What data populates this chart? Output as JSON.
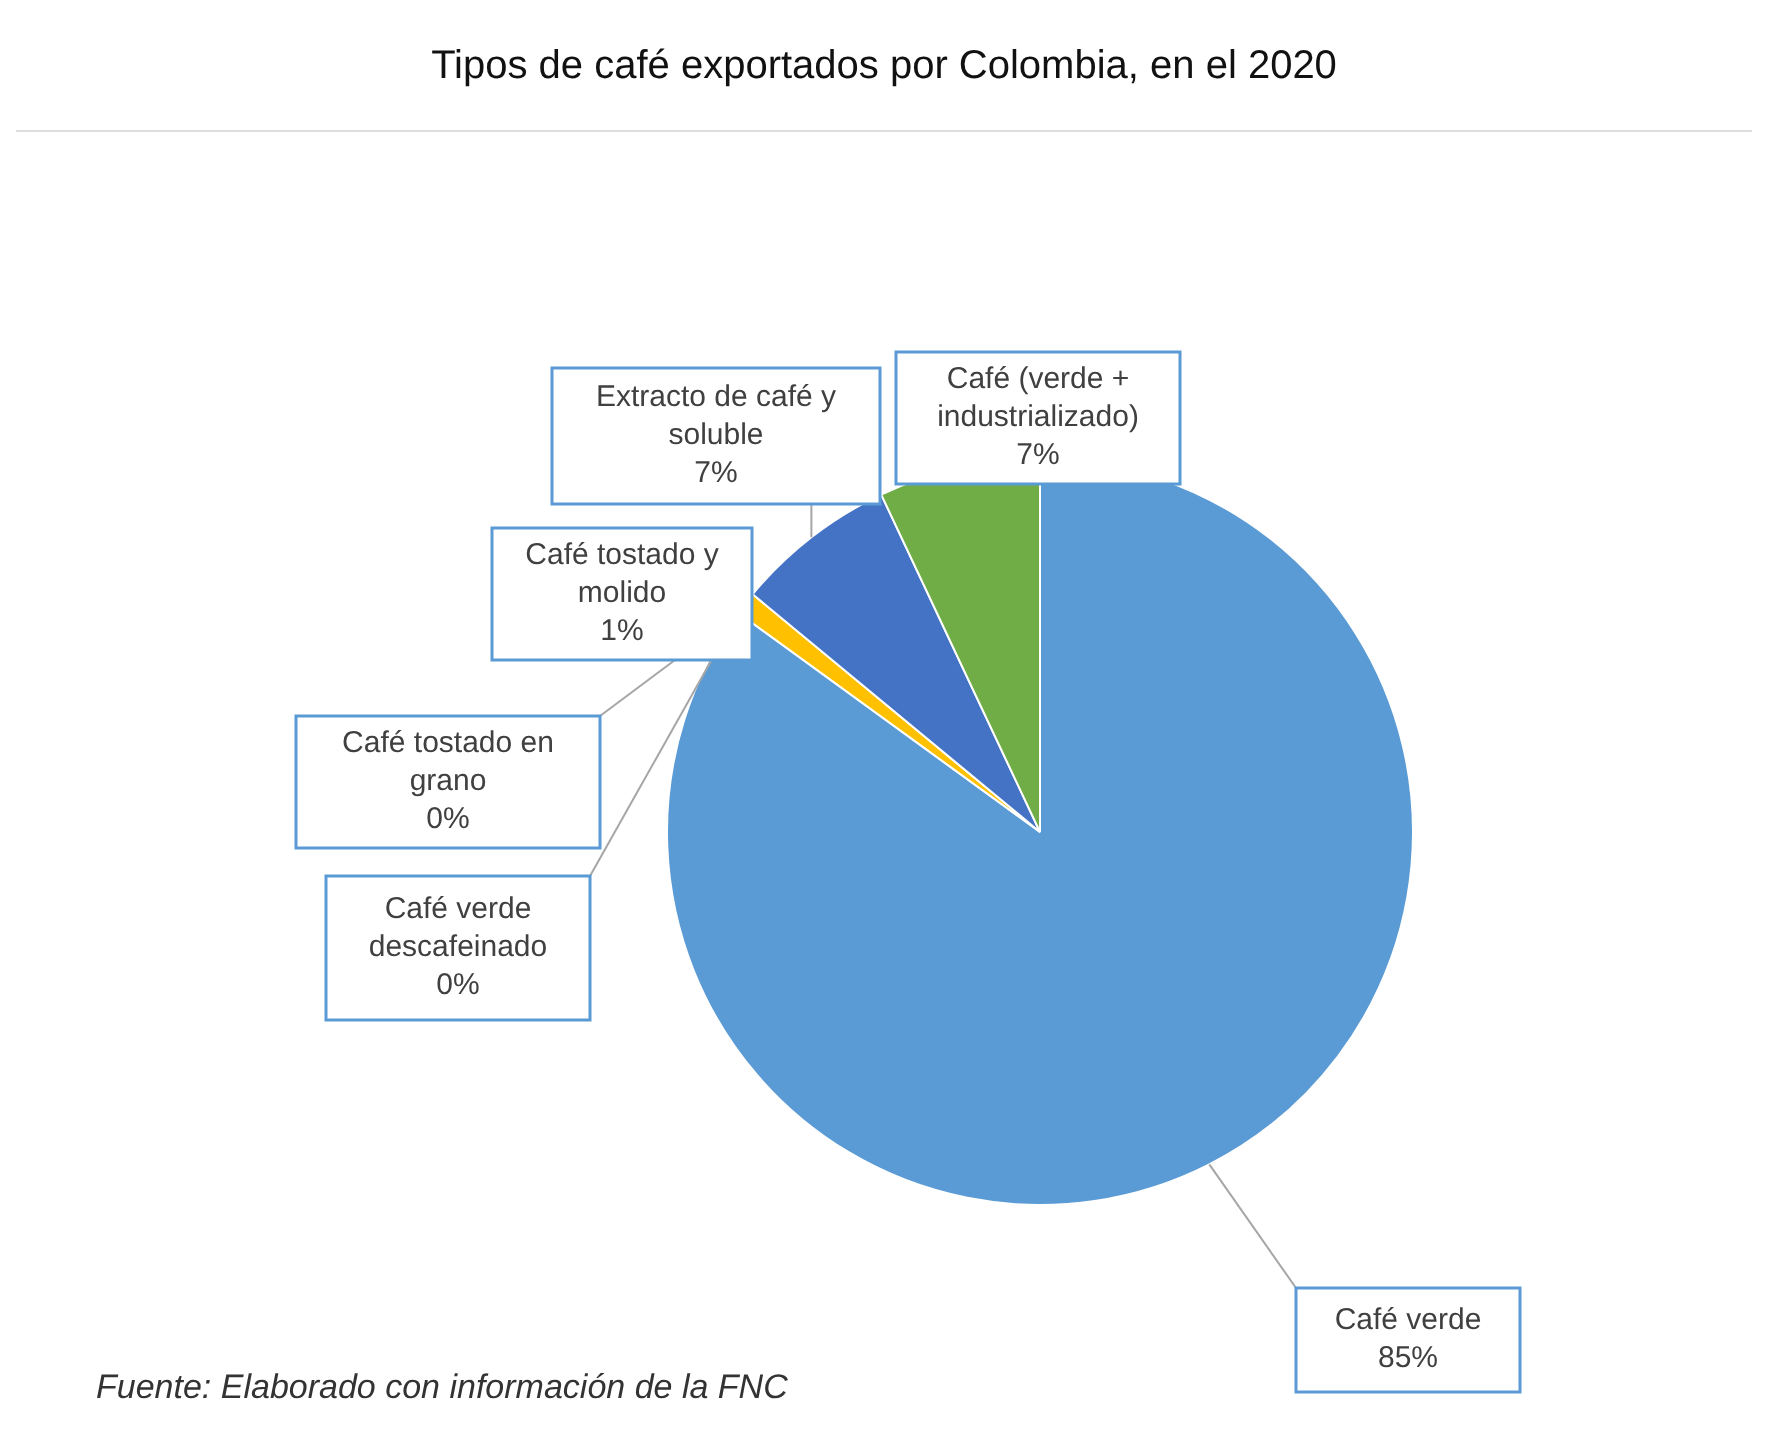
{
  "chart_data": {
    "type": "pie",
    "title": "Tipos de café exportados por Colombia, en el 2020",
    "categories": [
      "Café verde",
      "Café verde descafeinado",
      "Café tostado en grano",
      "Café tostado y molido",
      "Extracto de café y soluble",
      "Café (verde + industrializado)"
    ],
    "values": [
      85,
      0,
      0,
      1,
      7,
      7
    ],
    "value_labels": [
      "85%",
      "0%",
      "0%",
      "1%",
      "7%",
      "7%"
    ],
    "colors": [
      "#5b9bd5",
      "#ed7d31",
      "#a5a5a5",
      "#ffc000",
      "#4472c4",
      "#70ad47"
    ],
    "legend": false,
    "annotations": [
      "Fuente: Elaborado con información de la FNC"
    ]
  }
}
